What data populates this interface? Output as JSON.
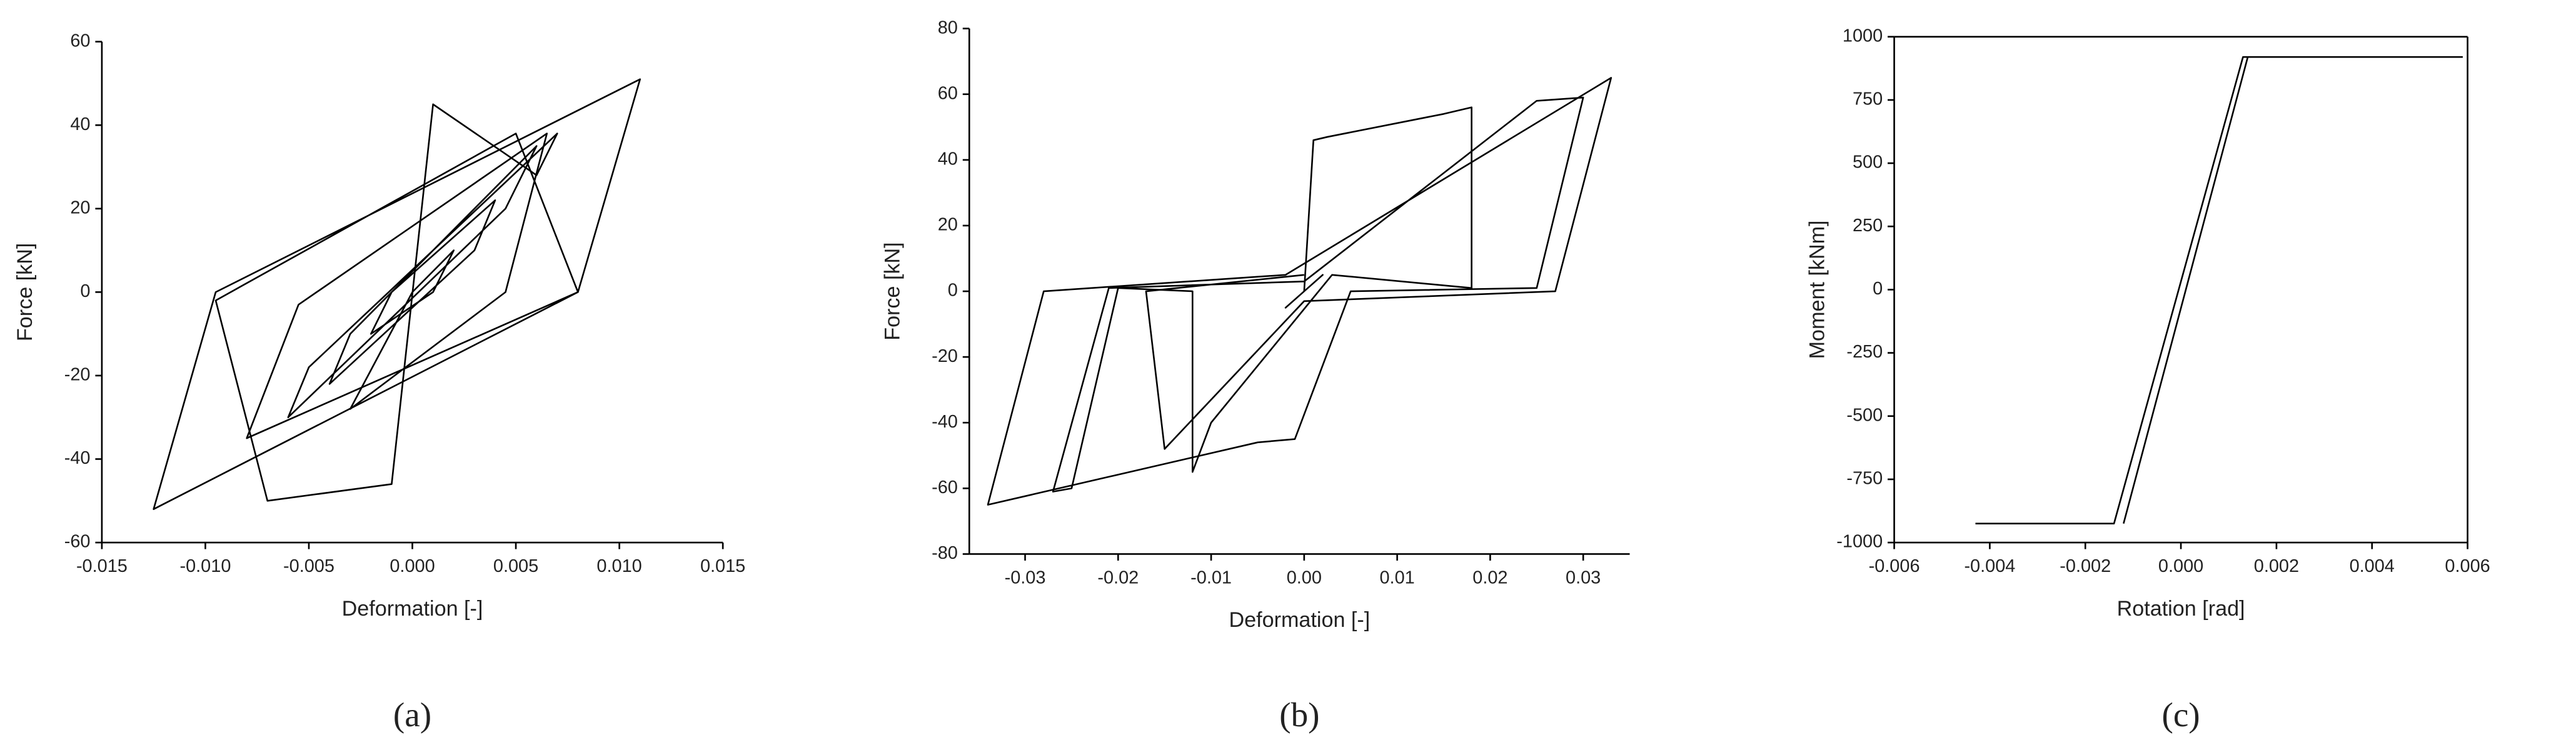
{
  "chart_data": [
    {
      "type": "line",
      "x_label": "Deformation [-]",
      "y_label": "Force [kN]",
      "caption": "(a)",
      "xlim": [
        -0.015,
        0.015
      ],
      "ylim": [
        -60,
        60
      ],
      "xticks": [
        -0.015,
        {
          "value": -0.01,
          "label": "-0.010"
        },
        -0.005,
        {
          "value": 0,
          "label": "0.000"
        },
        0.005,
        {
          "value": 0.01,
          "label": "0.010"
        },
        0.015
      ],
      "yticks": [
        -60,
        -40,
        -20,
        0,
        20,
        40,
        60
      ],
      "series": [
        {
          "color": "#000000",
          "x": [
            0,
            0.002,
            0.001,
            -0.002,
            -0.001,
            0.004,
            0.003,
            -0.004,
            -0.003,
            0.006,
            0.0045,
            -0.006,
            -0.005,
            0.007,
            0.006,
            0.001,
            -0.001,
            -0.007,
            -0.0095,
            0.005,
            0.008,
            -0.0125,
            -0.0095,
            0.011,
            0.008,
            -0.008,
            -0.0055,
            0.0065,
            0.0045,
            -0.003,
            0
          ],
          "values": [
            0,
            10,
            0,
            -10,
            0,
            22,
            10,
            -22,
            -10,
            35,
            20,
            -30,
            -18,
            38,
            28,
            45,
            -46,
            -50,
            -2,
            38,
            0,
            -52,
            0,
            51,
            0,
            -35,
            -3,
            38,
            0,
            -28,
            0
          ]
        }
      ]
    },
    {
      "type": "line",
      "x_label": "Deformation [-]",
      "y_label": "Force [kN]",
      "caption": "(b)",
      "xlim": [
        -0.036,
        0.035
      ],
      "ylim": [
        -80,
        80
      ],
      "xticks": [
        -0.03,
        -0.02,
        -0.01,
        {
          "value": 0,
          "label": "0.00"
        },
        0.01,
        0.02,
        0.03
      ],
      "yticks": [
        -80,
        -60,
        -40,
        -20,
        0,
        20,
        40,
        60,
        80
      ],
      "series": [
        {
          "color": "#000000",
          "x": [
            0,
            0.002,
            0,
            -0.002,
            0,
            0.001,
            0.0025,
            0.015,
            0.018,
            0.018,
            0.003,
            -0.01,
            -0.012,
            -0.012,
            -0.02,
            -0.025,
            -0.027,
            -0.021,
            0,
            0.025,
            0.03,
            0.025,
            0.005,
            -0.001,
            -0.005,
            -0.034,
            -0.028,
            -0.002,
            0.033,
            0.027,
            0,
            -0.015,
            -0.017,
            0
          ],
          "values": [
            0,
            5,
            0,
            -5,
            0,
            46,
            47,
            54,
            56,
            1,
            5,
            -40,
            -55,
            0,
            1,
            -60,
            -61,
            1,
            3,
            58,
            59,
            1,
            0,
            -45,
            -46,
            -65,
            0,
            5,
            65,
            0,
            -3,
            -48,
            0,
            5
          ]
        }
      ]
    },
    {
      "type": "line",
      "x_label": "Rotation [rad]",
      "y_label": "Moment [kNm]",
      "caption": "(c)",
      "xlim": [
        -0.006,
        0.006
      ],
      "ylim": [
        -1000,
        1000
      ],
      "xticks": [
        -0.006,
        -0.004,
        -0.002,
        {
          "value": 0,
          "label": "0.000"
        },
        0.002,
        0.004,
        0.006
      ],
      "yticks": [
        -1000,
        -750,
        -500,
        -250,
        0,
        250,
        500,
        750,
        1000
      ],
      "series": [
        {
          "color": "#000000",
          "x": [
            -0.0043,
            -0.0014,
            0.0013,
            0.0059
          ],
          "values": [
            -925,
            -925,
            920,
            920
          ]
        },
        {
          "color": "#000000",
          "x": [
            -0.0012,
            0.0014
          ],
          "values": [
            -925,
            920
          ]
        }
      ]
    }
  ]
}
